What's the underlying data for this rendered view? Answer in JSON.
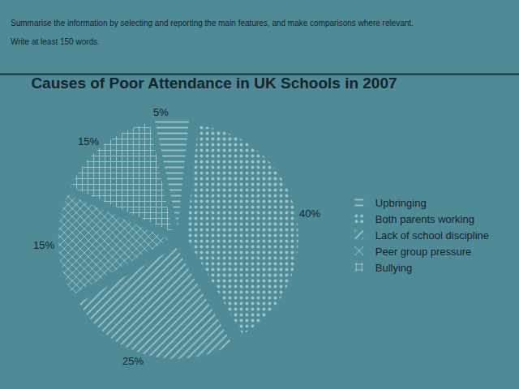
{
  "chart_data": {
    "type": "pie",
    "title": "Causes of Poor Attendance in UK Schools in 2007",
    "annotations": [
      "Summarise the information by selecting and reporting the main features, and make comparisons where relevant.",
      "Write at least 150 words."
    ],
    "categories": [
      "Upbringing",
      "Both parents working",
      "Lack of school discipline",
      "Peer group pressure",
      "Bullying"
    ],
    "values": [
      5,
      40,
      25,
      15,
      15
    ],
    "value_labels": [
      "5%",
      "40%",
      "25%",
      "15%",
      "15%"
    ],
    "colors": [
      "#2e4c58",
      "#4d8390",
      "#3b6a76",
      "#213a45",
      "#355e6a"
    ],
    "data_labels": true,
    "legend": "right"
  }
}
